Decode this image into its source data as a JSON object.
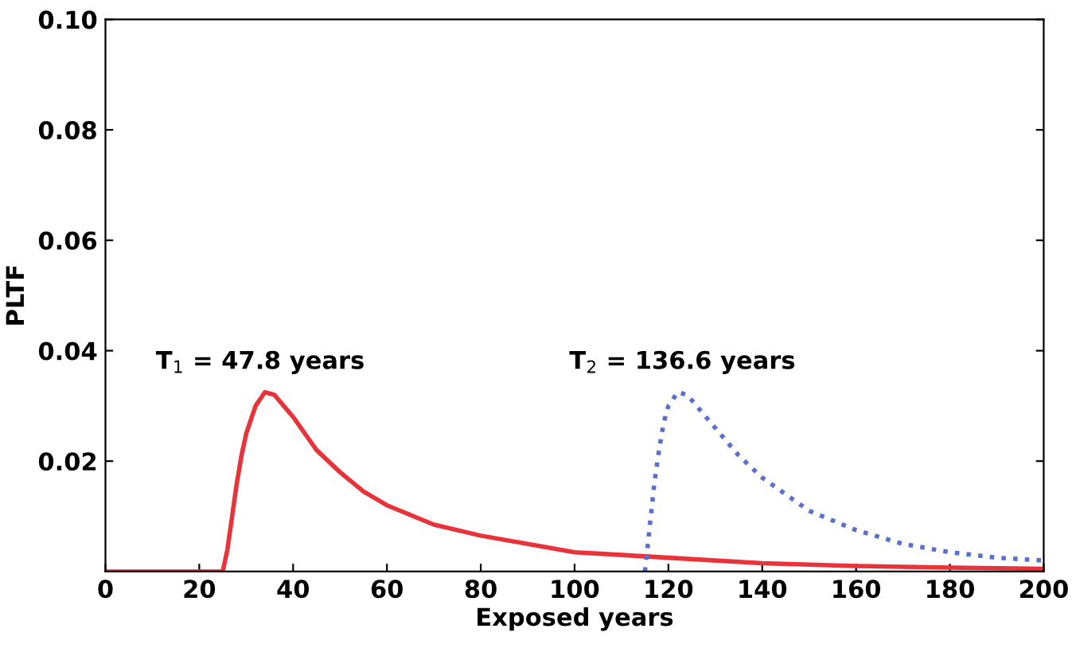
{
  "chart_data": {
    "type": "line",
    "xlabel": "Exposed years",
    "ylabel": "PLTF",
    "xlim": [
      0,
      200
    ],
    "xticks": [
      0,
      20,
      40,
      60,
      80,
      100,
      120,
      140,
      160,
      180,
      200
    ],
    "ylim": [
      0,
      0.1
    ],
    "yticks": [
      0.02,
      0.04,
      0.06,
      0.08,
      {
        "value": 0.1,
        "label": "0.10"
      }
    ],
    "grid": false,
    "legend": false,
    "marker": "none",
    "annotations": [
      {
        "text": "T$_{1}$ = 47.8 years",
        "x": 33,
        "y": 0.0325
      },
      {
        "text": "T$_{2}$ = 136.6 years",
        "x": 123,
        "y": 0.0325
      }
    ],
    "series": [
      {
        "color": "#e8333a",
        "line_style": "solid",
        "x": [
          0,
          25,
          26,
          27,
          28,
          29,
          30,
          32,
          34,
          36,
          38,
          40,
          45,
          50,
          55,
          60,
          70,
          80,
          90,
          100,
          110,
          120,
          140,
          160,
          180,
          200
        ],
        "values": [
          0,
          0,
          0.004,
          0.01,
          0.016,
          0.021,
          0.025,
          0.03,
          0.0325,
          0.032,
          0.03,
          0.028,
          0.022,
          0.018,
          0.0145,
          0.012,
          0.0085,
          0.0065,
          0.005,
          0.0035,
          0.003,
          0.0025,
          0.0015,
          0.001,
          0.0007,
          0.0005
        ]
      },
      {
        "color": "#5a6fd0",
        "line_style": "dotted",
        "x": [
          115,
          116,
          117,
          118,
          119,
          120,
          122,
          124,
          126,
          130,
          135,
          140,
          150,
          160,
          170,
          180,
          190,
          200
        ],
        "values": [
          0,
          0.008,
          0.016,
          0.022,
          0.027,
          0.03,
          0.0325,
          0.032,
          0.03,
          0.026,
          0.021,
          0.017,
          0.011,
          0.0075,
          0.005,
          0.0035,
          0.0025,
          0.002
        ]
      }
    ]
  }
}
